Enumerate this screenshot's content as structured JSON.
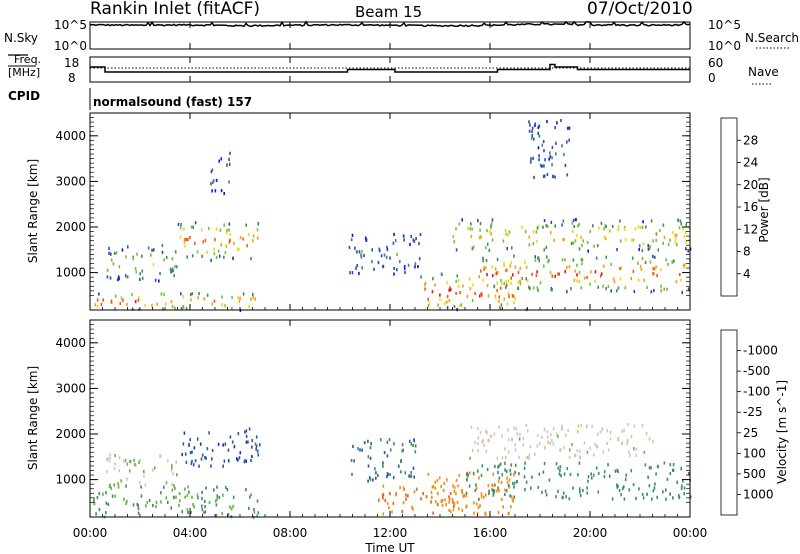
{
  "header": {
    "title": "Rankin Inlet (fitACF)",
    "beam": "Beam 15",
    "date": "07/Oct/2010"
  },
  "sky_panel": {
    "left_label": "N.Sky",
    "left_ticks": [
      "10^5",
      "10^0"
    ],
    "right_ticks": [
      "10^5",
      "10^0"
    ],
    "right_label": "N.Search"
  },
  "freq_panel": {
    "left_label_1": "Freq.",
    "left_label_2": "[MHz]",
    "left_ticks": [
      "18",
      "8"
    ],
    "right_ticks": [
      "60",
      "0"
    ],
    "right_label": "Nave"
  },
  "cpid": {
    "label": "CPID",
    "text": "normalsound (fast) 157"
  },
  "time_axis": {
    "ticks": [
      "00:00",
      "04:00",
      "08:00",
      "12:00",
      "16:00",
      "20:00",
      "00:00"
    ],
    "label": "Time UT"
  },
  "power_panel": {
    "ylabel": "Slant Range [km]",
    "yticks": [
      "1000",
      "2000",
      "3000",
      "4000"
    ],
    "colorbar_label": "Power [dB]",
    "colorbar_ticks": [
      "4",
      "8",
      "12",
      "16",
      "20",
      "24",
      "28"
    ],
    "colorbar_colors": [
      "#1414e6",
      "#2850b4",
      "#3c8c64",
      "#78be3c",
      "#e6dc14",
      "#f5a014",
      "#f05a14",
      "#e61414"
    ]
  },
  "velocity_panel": {
    "ylabel": "Slant Range [km]",
    "yticks": [
      "1000",
      "2000",
      "3000",
      "4000"
    ],
    "colorbar_label": "Velocity [m s^-1]",
    "colorbar_ticks": [
      "-1000",
      "-500",
      "-100",
      "-25",
      "25",
      "100",
      "500",
      "1000"
    ],
    "colorbar_colors": [
      "#e61414",
      "#f05a14",
      "#f58c14",
      "#f5b450",
      "#c8c8c8",
      "#64b43c",
      "#3c8c64",
      "#285aa0",
      "#1432b4"
    ]
  },
  "chart_data": [
    {
      "type": "line",
      "title": "N.Sky / N.Search",
      "x_range_hours": [
        0,
        24
      ],
      "y_scale": "log",
      "ylim": [
        "10^0",
        "10^5"
      ],
      "series": [
        {
          "name": "N.Sky",
          "x": [
            0,
            2,
            4,
            6,
            8,
            10,
            12,
            14,
            16,
            18,
            20,
            22,
            24
          ],
          "values": [
            30000,
            25000,
            30000,
            20000,
            25000,
            30000,
            25000,
            20000,
            25000,
            40000,
            30000,
            25000,
            30000
          ]
        }
      ]
    },
    {
      "type": "line",
      "title": "Freq / Nave",
      "x_range_hours": [
        0,
        24
      ],
      "ylim_freq_mhz": [
        8,
        18
      ],
      "ylim_nave": [
        0,
        60
      ],
      "series": [
        {
          "name": "Freq.",
          "x": [
            0,
            0.5,
            0.6,
            10,
            10.3,
            12,
            12.2,
            16,
            16.3,
            18.2,
            18.4,
            18.6,
            19.5,
            20.5,
            24
          ],
          "values": [
            14,
            14,
            12,
            12,
            13,
            13,
            12,
            12,
            13,
            13,
            15,
            14,
            13,
            13,
            13
          ]
        },
        {
          "name": "Nave",
          "x": [
            0,
            24
          ],
          "values": [
            30,
            30
          ]
        }
      ]
    },
    {
      "type": "heatmap",
      "title": "Power [dB]",
      "x_unit": "hours UT",
      "y_unit": "km",
      "xlim": [
        0,
        24
      ],
      "ylim": [
        180,
        4500
      ],
      "zlim": [
        0,
        32
      ],
      "regions": [
        {
          "t": [
            0.1,
            6.7
          ],
          "r": [
            200,
            600
          ],
          "z_peak": 28
        },
        {
          "t": [
            0.6,
            3.5
          ],
          "r": [
            850,
            1650
          ],
          "z_peak": 16
        },
        {
          "t": [
            3.5,
            6.8
          ],
          "r": [
            1300,
            2150
          ],
          "z_peak": 26
        },
        {
          "t": [
            4.8,
            5.6
          ],
          "r": [
            2750,
            3700
          ],
          "z_peak": 8
        },
        {
          "t": [
            10.3,
            13.2
          ],
          "r": [
            1000,
            1900
          ],
          "z_peak": 10
        },
        {
          "t": [
            13.2,
            17.5
          ],
          "r": [
            220,
            1000
          ],
          "z_peak": 30
        },
        {
          "t": [
            15.5,
            24
          ],
          "r": [
            600,
            1400
          ],
          "z_peak": 28
        },
        {
          "t": [
            14.5,
            24
          ],
          "r": [
            1500,
            2200
          ],
          "z_peak": 22
        },
        {
          "t": [
            17.5,
            19.2
          ],
          "r": [
            3000,
            4400
          ],
          "z_peak": 8
        }
      ]
    },
    {
      "type": "heatmap",
      "title": "Velocity [m s^-1]",
      "x_unit": "hours UT",
      "y_unit": "km",
      "xlim": [
        0,
        24
      ],
      "ylim": [
        180,
        4500
      ],
      "zlim": [
        -1000,
        1000
      ],
      "regions": [
        {
          "t": [
            0.1,
            6.7
          ],
          "r": [
            200,
            900
          ],
          "z": 100
        },
        {
          "t": [
            0.6,
            3.5
          ],
          "r": [
            900,
            1600
          ],
          "z": 25
        },
        {
          "t": [
            3.5,
            6.8
          ],
          "r": [
            1300,
            2150
          ],
          "z": 800
        },
        {
          "t": [
            10.3,
            13.0
          ],
          "r": [
            1000,
            1950
          ],
          "z": 500
        },
        {
          "t": [
            11.5,
            15.0
          ],
          "r": [
            250,
            900
          ],
          "z": -500
        },
        {
          "t": [
            13.5,
            17.0
          ],
          "r": [
            250,
            1200
          ],
          "z": -300
        },
        {
          "t": [
            15.0,
            24
          ],
          "r": [
            600,
            1400
          ],
          "z": 300
        },
        {
          "t": [
            15.0,
            22.5
          ],
          "r": [
            1500,
            2250
          ],
          "z": 0
        }
      ]
    }
  ]
}
